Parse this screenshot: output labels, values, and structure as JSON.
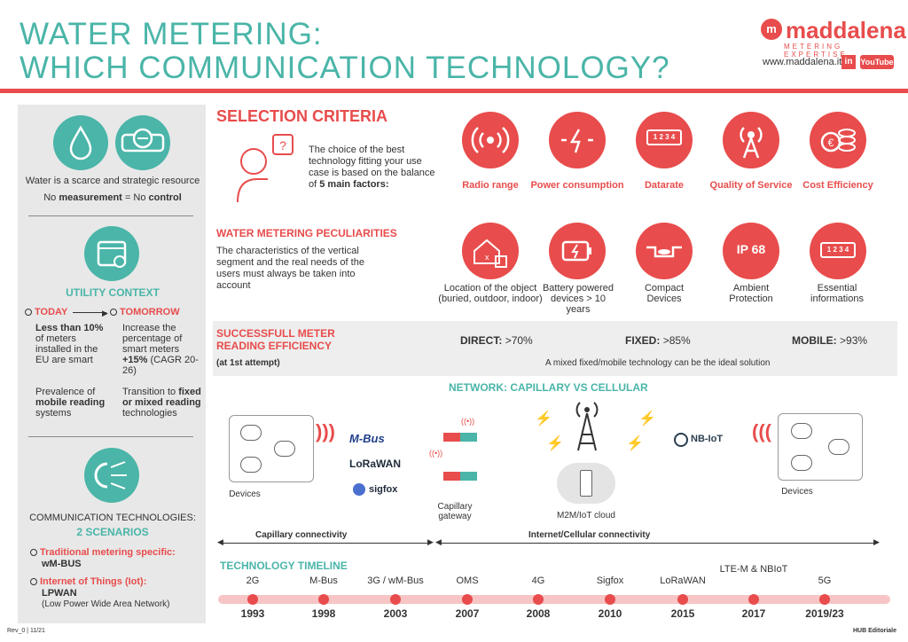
{
  "header": {
    "title_line1": "WATER METERING:",
    "title_line2": "WHICH COMMUNICATION TECHNOLOGY?",
    "brand": "maddalena",
    "brand_sub": "METERING EXPERTISE",
    "website": "www.maddalena.it",
    "linkedin": "in",
    "youtube": "YouTube"
  },
  "sidebar": {
    "water_text": "Water is a scarce and strategic resource",
    "measure_prefix": "No ",
    "measure_bold": "measurement",
    "measure_mid": " = No ",
    "measure_bold2": "control",
    "utility_head": "UTILITY CONTEXT",
    "today": "TODAY",
    "tomorrow": "TOMORROW",
    "today_p1_bold": "Less than",
    "today_p1_bold2": "10%",
    "today_p1_rest": " of meters installed in the EU are smart",
    "tomorrow_p1": "Increase the percentage of smart meters",
    "tomorrow_p1_bold": "+15%",
    "tomorrow_p1_note": "(CAGR 20-26)",
    "today_p2_pre": "Prevalence of ",
    "today_p2_bold": "mobile reading",
    "today_p2_post": " systems",
    "tomorrow_p2_pre": "Transition to ",
    "tomorrow_p2_bold": "fixed or mixed reading",
    "tomorrow_p2_post": " technologies",
    "comm_head": "COMMUNICATION TECHNOLOGIES:",
    "comm_sub": "2 SCENARIOS",
    "trad_label": "Traditional metering specific:",
    "trad_value": "wM-BUS",
    "iot_label": "Internet of Things (Iot):",
    "iot_value": "LPWAN",
    "iot_note": "(Low Power Wide Area Network)"
  },
  "selection": {
    "head": "SELECTION CRITERIA",
    "intro": "The choice of the best technology fitting your use case is based on the balance of",
    "intro_bold": "5 main factors:",
    "factors": [
      "Radio range",
      "Power consumption",
      "Datarate",
      "Quality of Service",
      "Cost Efficiency"
    ],
    "datarate_glyph": "1 2 3 4"
  },
  "peculiarities": {
    "head": "WATER METERING PECULIARITIES",
    "text": "The characteristics of the vertical segment and the real needs of the users must always be taken into account",
    "items": [
      "Location of the object (buried, outdoor, indoor)",
      "Battery powered devices > 10 years",
      "Compact Devices",
      "Ambient Protection",
      "Essential informations"
    ],
    "ip_glyph": "IP 68",
    "info_glyph": "1 2 3 4"
  },
  "efficiency": {
    "head": "SUCCESSFULL METER READING EFFICIENCY",
    "sub": "(at 1st attempt)",
    "direct_label": "DIRECT:",
    "direct_value": ">70%",
    "fixed_label": "FIXED:",
    "fixed_value": ">85%",
    "mobile_label": "MOBILE:",
    "mobile_value": ">93%",
    "note": "A mixed fixed/mobile technology can be the ideal solution"
  },
  "network": {
    "head": "NETWORK: CAPILLARY VS CELLULAR",
    "devices_left": "Devices",
    "devices_right": "Devices",
    "logos": [
      "M-Bus",
      "LoRaWAN",
      "sigfox"
    ],
    "nbiot": "NB-IoT",
    "gateway": "Capillary gateway",
    "cloud": "M2M/IoT cloud",
    "capillary_conn": "Capillary connectivity",
    "cellular_conn": "Internet/Cellular connectivity"
  },
  "timeline": {
    "head": "TECHNOLOGY TIMELINE",
    "entries": [
      {
        "tech": "2G",
        "year": "1993"
      },
      {
        "tech": "M-Bus",
        "year": "1998"
      },
      {
        "tech": "3G / wM-Bus",
        "year": "2003"
      },
      {
        "tech": "OMS",
        "year": "2007"
      },
      {
        "tech": "4G",
        "year": "2008"
      },
      {
        "tech": "Sigfox",
        "year": "2010"
      },
      {
        "tech": "LoRaWAN",
        "year": "2015"
      },
      {
        "tech": "LTE-M & NBIoT",
        "year": "2017"
      },
      {
        "tech": "5G",
        "year": "2019/23"
      }
    ]
  },
  "footer": {
    "rev": "Rev_0 | 11/21",
    "hub": "HUB Editoriale"
  }
}
